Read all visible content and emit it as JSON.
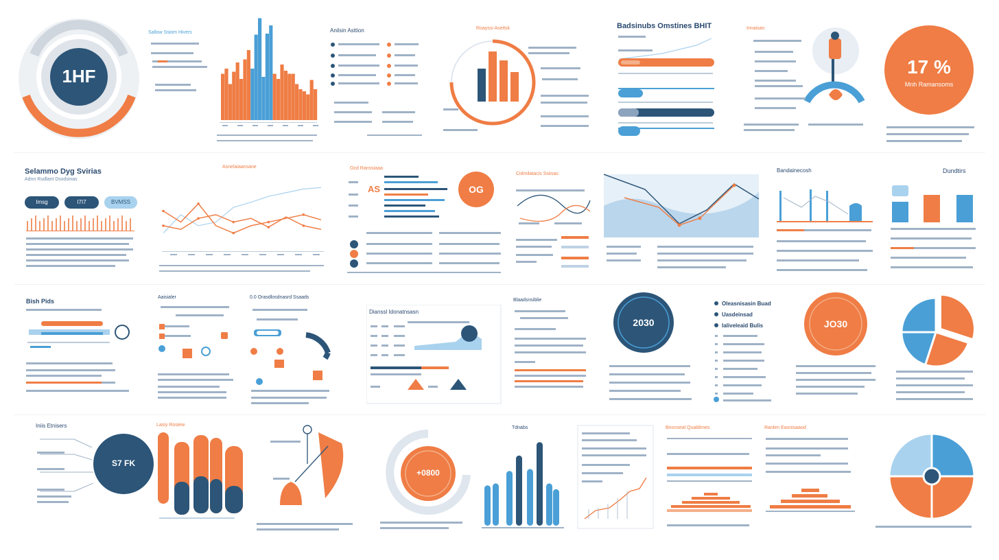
{
  "colors": {
    "orange": "#ef7d45",
    "navy": "#2c5578",
    "blue": "#4a9fd6",
    "light_blue": "#a9d2ee",
    "gray": "#d7dde4",
    "text": "#2b4a6f"
  },
  "row1": {
    "badge_1_text": "1HF",
    "panel_2_heading": "Sallow Ssiom Hivers",
    "panel_3_heading": "Anilsin Asttion",
    "panel_4_heading": "Roayssi Aseitsk",
    "panel_5_heading": "Badsinubs Omstines BHIT",
    "panel_6_heading": "Innaisan",
    "badge_7_text": "17 %",
    "badge_7_sub": "Mnh Ramansoms"
  },
  "row2": {
    "panel_1_heading": "Selammo Dyg Svirias",
    "panel_1_sub": "Adnn Rudlant Dsxdsinas",
    "pills": [
      "Imsg",
      "I7I7",
      "BVMSS"
    ],
    "panel_2_heading": "Asnelaiaansane",
    "panel_3_heading": "Ocd Ranssiaaa",
    "panel_3_code": "AS",
    "badge_3_text": "OG",
    "panel_4_heading": "Cidmilatacis Ssiisas",
    "panel_6_heading": "Bandainecosh",
    "panel_7_heading": "Dundtirs"
  },
  "row3": {
    "panel_1_heading": "Bish Pids",
    "panel_2_heading": "Aaisialer",
    "panel_3_heading": "0.0  Orasdlosdnasrd Ssaads",
    "panel_4_heading": "Dianssl Idonatnsasn",
    "panel_5_heading": "Blaadsnsiblie",
    "badge_6_text": "2030",
    "panel_7_items": [
      "Oleasnisasin Buad",
      "Uasdeinsad",
      "Ialiveleaid Bulis"
    ],
    "badge_8_text": "JO30"
  },
  "row4": {
    "panel_1_heading": "Iniis Etnisers",
    "badge_1_text": "S7 FK",
    "panel_2_heading": "Lasiy Rosiew",
    "badge_4_text": "+0800",
    "panel_5_heading": "Tdnabs",
    "panel_6_heading": "Bnonseal Qualdimes",
    "panel_7_heading": "Ranlen Easnisaaod"
  },
  "charts": [
    {
      "panel": "row1-bars",
      "type": "bar",
      "categories": [
        "",
        "",
        "",
        "",
        "",
        "",
        "",
        "",
        "",
        "",
        "",
        "",
        "",
        "",
        "",
        "",
        "",
        "",
        "",
        "",
        "",
        "",
        "",
        "",
        "",
        ""
      ],
      "series": [
        {
          "values": [
            45,
            50,
            35,
            47,
            56,
            40,
            59,
            68,
            50,
            83,
            99,
            42,
            84,
            92,
            45,
            40,
            54,
            48,
            45,
            45,
            35,
            30,
            28,
            25,
            39,
            30
          ]
        }
      ],
      "ylim": [
        0,
        100
      ]
    },
    {
      "panel": "row4-bars",
      "type": "bar",
      "categories": [
        "",
        "",
        "",
        "",
        "",
        "",
        "",
        ""
      ],
      "series": [
        {
          "values": [
            42,
            44,
            57,
            73,
            59,
            87,
            44,
            38
          ]
        }
      ],
      "ylim": [
        0,
        100
      ]
    },
    {
      "panel": "row2-lines",
      "type": "line",
      "x": [
        1,
        2,
        3,
        4,
        5,
        6,
        7,
        8,
        9,
        10
      ],
      "series": [
        {
          "values": [
            20,
            45,
            30,
            35,
            55,
            62,
            70,
            75,
            80,
            82
          ]
        },
        {
          "values": [
            30,
            25,
            40,
            45,
            35,
            40,
            28,
            42,
            30,
            25
          ]
        },
        {
          "values": [
            50,
            35,
            60,
            30,
            20,
            30,
            35,
            40,
            45,
            38
          ]
        }
      ],
      "ylim": [
        0,
        100
      ]
    },
    {
      "panel": "row1-pie",
      "type": "pie",
      "values": [
        30,
        25,
        20,
        25
      ]
    },
    {
      "panel": "row4-pie",
      "type": "pie",
      "values": [
        25,
        25,
        25,
        25
      ]
    }
  ]
}
